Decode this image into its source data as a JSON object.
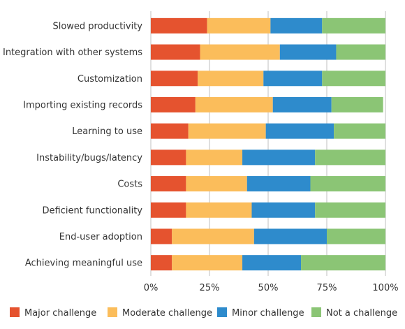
{
  "chart_data": {
    "type": "bar",
    "orientation": "horizontal",
    "stacked": true,
    "percent": true,
    "categories": [
      "Slowed productivity",
      "Integration with other systems",
      "Customization",
      "Importing existing records",
      "Learning to use",
      "Instability/bugs/latency",
      "Costs",
      "Deficient functionality",
      "End-user adoption",
      "Achieving meaningful use"
    ],
    "series": [
      {
        "name": "Major challenge",
        "color": "#e5532f",
        "values": [
          24,
          21,
          20,
          19,
          16,
          15,
          15,
          15,
          9,
          9
        ]
      },
      {
        "name": "Moderate challenge",
        "color": "#fbbd5b",
        "values": [
          27,
          34,
          28,
          33,
          33,
          24,
          26,
          28,
          35,
          30
        ]
      },
      {
        "name": "Minor challenge",
        "color": "#2e8bcc",
        "values": [
          22,
          24,
          25,
          25,
          29,
          31,
          27,
          27,
          31,
          25
        ]
      },
      {
        "name": "Not a challenge",
        "color": "#8bc575",
        "values": [
          27,
          21,
          27,
          22,
          22,
          30,
          32,
          30,
          25,
          36
        ]
      }
    ],
    "xticks": [
      "0%",
      "25%",
      "50%",
      "75%",
      "100%"
    ],
    "xlim": [
      0,
      100
    ],
    "grid": true,
    "legend_position": "bottom"
  }
}
